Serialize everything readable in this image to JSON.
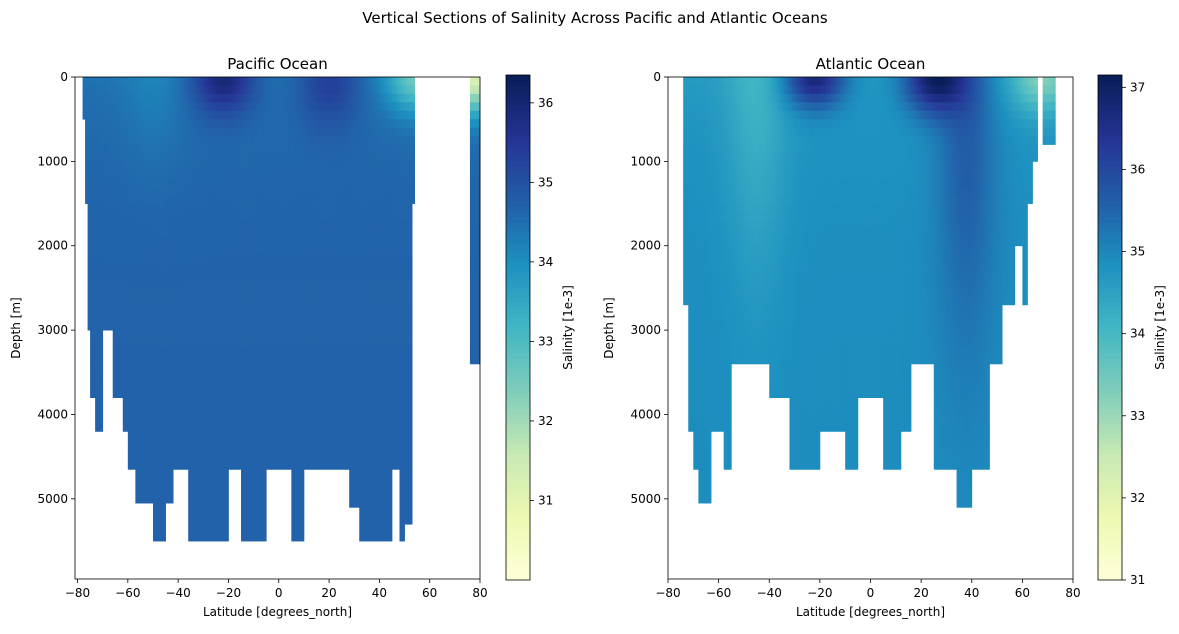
{
  "figure": {
    "suptitle": "Vertical Sections of Salinity Across Pacific and Atlantic Oceans"
  },
  "colormap": {
    "name": "YlGnBu",
    "stops": [
      "#ffffd9",
      "#edf8b1",
      "#c7e9b4",
      "#7fcdbb",
      "#41b6c4",
      "#1d91c0",
      "#225ea8",
      "#253494",
      "#081d58"
    ]
  },
  "chart_data": [
    {
      "type": "heatmap",
      "title": "Pacific Ocean",
      "xlabel": "Latitude [degrees_north]",
      "ylabel": "Depth [m]",
      "colorbar_label": "Salinity [1e-3]",
      "xlim": [
        -81,
        80
      ],
      "ylim": [
        5950,
        0
      ],
      "xticks": [
        -80,
        -60,
        -40,
        -20,
        0,
        20,
        40,
        60,
        80
      ],
      "yticks": [
        0,
        1000,
        2000,
        3000,
        4000,
        5000
      ],
      "clim": [
        30.0,
        36.35
      ],
      "cticks": [
        31,
        32,
        33,
        34,
        35,
        36
      ],
      "deep_value": 34.7,
      "bottom_profile": [
        [
          -78,
          500
        ],
        [
          -77,
          1500
        ],
        [
          -76,
          3000
        ],
        [
          -75,
          3800
        ],
        [
          -73,
          4200
        ],
        [
          -70,
          3000
        ],
        [
          -66,
          3800
        ],
        [
          -62,
          4200
        ],
        [
          -60,
          4650
        ],
        [
          -57,
          5050
        ],
        [
          -53,
          5050
        ],
        [
          -50,
          5500
        ],
        [
          -45,
          5050
        ],
        [
          -42,
          4650
        ],
        [
          -36,
          5500
        ],
        [
          -20,
          4650
        ],
        [
          -15,
          5500
        ],
        [
          -5,
          4650
        ],
        [
          5,
          5500
        ],
        [
          10,
          4650
        ],
        [
          28,
          5100
        ],
        [
          32,
          5500
        ],
        [
          45,
          4650
        ],
        [
          48,
          5500
        ],
        [
          50,
          5300
        ],
        [
          52,
          5300
        ],
        [
          53,
          1500
        ],
        [
          54,
          900
        ]
      ],
      "arctic_segment": {
        "lat_range": [
          76,
          80
        ],
        "depth": 3400
      },
      "surface_features": [
        {
          "lat": -22,
          "depth": 100,
          "salinity": 36.2
        },
        {
          "lat": 20,
          "depth": 150,
          "salinity": 35.6
        },
        {
          "lat": -50,
          "depth": 300,
          "salinity": 34.4
        },
        {
          "lat": 55,
          "depth": 100,
          "salinity": 32.8
        },
        {
          "lat": 78,
          "depth": 100,
          "salinity": 31.5
        }
      ]
    },
    {
      "type": "heatmap",
      "title": "Atlantic Ocean",
      "xlabel": "Latitude [degrees_north]",
      "ylabel": "Depth [m]",
      "colorbar_label": "Salinity [1e-3]",
      "xlim": [
        -80,
        80
      ],
      "ylim": [
        5950,
        0
      ],
      "xticks": [
        -80,
        -60,
        -40,
        -20,
        0,
        20,
        40,
        60,
        80
      ],
      "yticks": [
        0,
        1000,
        2000,
        3000,
        4000,
        5000
      ],
      "clim": [
        31.0,
        37.15
      ],
      "cticks": [
        31,
        32,
        33,
        34,
        35,
        36,
        37
      ],
      "deep_value": 34.9,
      "bottom_profile": [
        [
          -74,
          2700
        ],
        [
          -72,
          4200
        ],
        [
          -70,
          4650
        ],
        [
          -68,
          5050
        ],
        [
          -63,
          4200
        ],
        [
          -58,
          4650
        ],
        [
          -55,
          3400
        ],
        [
          -40,
          3800
        ],
        [
          -32,
          4650
        ],
        [
          -20,
          4200
        ],
        [
          -10,
          4650
        ],
        [
          -5,
          3800
        ],
        [
          5,
          4650
        ],
        [
          12,
          4200
        ],
        [
          16,
          3400
        ],
        [
          25,
          4650
        ],
        [
          34,
          5100
        ],
        [
          40,
          4650
        ],
        [
          47,
          3400
        ],
        [
          52,
          2700
        ],
        [
          57,
          2000
        ],
        [
          60,
          2700
        ],
        [
          62,
          1500
        ],
        [
          64,
          1000
        ],
        [
          66,
          500
        ]
      ],
      "arctic_segment": {
        "lat_range": [
          68,
          73
        ],
        "depth": 800
      },
      "surface_features": [
        {
          "lat": -22,
          "depth": 80,
          "salinity": 37.0
        },
        {
          "lat": 25,
          "depth": 100,
          "salinity": 37.1
        },
        {
          "lat": 38,
          "depth": 1000,
          "salinity": 35.8
        },
        {
          "lat": -45,
          "depth": 800,
          "salinity": 34.3
        },
        {
          "lat": 68,
          "depth": 100,
          "salinity": 33.5
        }
      ]
    }
  ]
}
